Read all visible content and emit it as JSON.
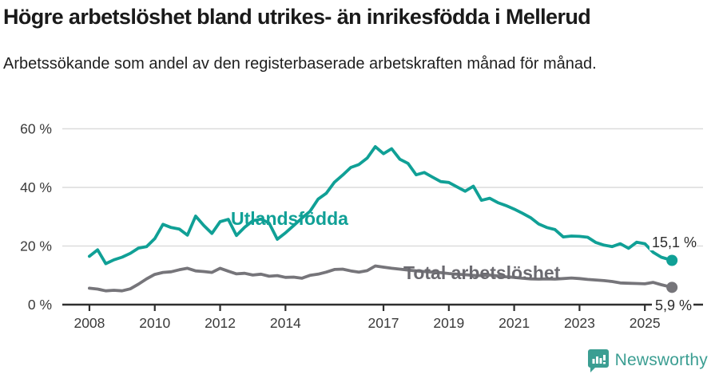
{
  "header": {
    "title": "Högre arbetslöshet bland utrikes- än inrikesfödda i Mellerud",
    "subtitle": "Arbetssökande som andel av den registerbaserade arbetskraften månad för månad."
  },
  "chart_data": {
    "type": "line",
    "title": "Högre arbetslöshet bland utrikes- än inrikesfödda i Mellerud",
    "subtitle": "Arbetssökande som andel av den registerbaserade arbetskraften månad för månad.",
    "xlabel": "",
    "ylabel": "",
    "x_unit": "decimal-year (monthly data 2008–2025)",
    "xlim": [
      2007.17,
      2026.78
    ],
    "ylim": [
      0,
      62
    ],
    "grid": "horizontal",
    "y_ticks": [
      0,
      20,
      40,
      60
    ],
    "y_tick_labels": [
      "0 %",
      "20 %",
      "40 %",
      "60 %"
    ],
    "x_ticks": [
      2008,
      2010,
      2012,
      2014,
      2017,
      2019,
      2021,
      2023,
      2025
    ],
    "x_tick_labels": [
      "2008",
      "2010",
      "2012",
      "2014",
      "2017",
      "2019",
      "2021",
      "2023",
      "2025"
    ],
    "legend_position": "inline-labels",
    "series": [
      {
        "name": "Utlandsfödda",
        "color": "#10a096",
        "label_color": "#10a096",
        "end_label": "15,1 %",
        "end_value": 15.1,
        "points": [
          [
            2008.0,
            16.5
          ],
          [
            2008.25,
            18.7
          ],
          [
            2008.5,
            14.0
          ],
          [
            2008.75,
            15.3
          ],
          [
            2009.0,
            16.2
          ],
          [
            2009.25,
            17.5
          ],
          [
            2009.5,
            19.3
          ],
          [
            2009.75,
            19.8
          ],
          [
            2010.0,
            22.5
          ],
          [
            2010.25,
            27.4
          ],
          [
            2010.5,
            26.3
          ],
          [
            2010.75,
            25.8
          ],
          [
            2011.0,
            23.7
          ],
          [
            2011.25,
            30.2
          ],
          [
            2011.5,
            27.0
          ],
          [
            2011.75,
            24.3
          ],
          [
            2012.0,
            28.3
          ],
          [
            2012.25,
            29.1
          ],
          [
            2012.5,
            23.6
          ],
          [
            2012.75,
            26.4
          ],
          [
            2013.0,
            28.6
          ],
          [
            2013.25,
            29.2
          ],
          [
            2013.5,
            27.8
          ],
          [
            2013.75,
            22.3
          ],
          [
            2014.0,
            24.5
          ],
          [
            2014.25,
            27.0
          ],
          [
            2014.5,
            29.5
          ],
          [
            2014.75,
            31.8
          ],
          [
            2015.0,
            36.0
          ],
          [
            2015.25,
            38.0
          ],
          [
            2015.5,
            41.8
          ],
          [
            2015.75,
            44.2
          ],
          [
            2016.0,
            46.8
          ],
          [
            2016.25,
            47.8
          ],
          [
            2016.5,
            50.0
          ],
          [
            2016.75,
            53.9
          ],
          [
            2017.0,
            51.5
          ],
          [
            2017.25,
            53.2
          ],
          [
            2017.5,
            49.6
          ],
          [
            2017.75,
            48.2
          ],
          [
            2018.0,
            44.3
          ],
          [
            2018.25,
            45.1
          ],
          [
            2018.5,
            43.5
          ],
          [
            2018.75,
            42.0
          ],
          [
            2019.0,
            41.7
          ],
          [
            2019.25,
            40.2
          ],
          [
            2019.5,
            38.7
          ],
          [
            2019.75,
            40.4
          ],
          [
            2020.0,
            35.6
          ],
          [
            2020.25,
            36.3
          ],
          [
            2020.5,
            34.8
          ],
          [
            2020.75,
            33.8
          ],
          [
            2021.0,
            32.6
          ],
          [
            2021.25,
            31.2
          ],
          [
            2021.5,
            29.7
          ],
          [
            2021.75,
            27.5
          ],
          [
            2022.0,
            26.3
          ],
          [
            2022.25,
            25.6
          ],
          [
            2022.5,
            23.1
          ],
          [
            2022.75,
            23.4
          ],
          [
            2023.0,
            23.3
          ],
          [
            2023.25,
            23.0
          ],
          [
            2023.5,
            21.2
          ],
          [
            2023.75,
            20.3
          ],
          [
            2024.0,
            19.8
          ],
          [
            2024.25,
            20.8
          ],
          [
            2024.5,
            19.2
          ],
          [
            2024.75,
            21.3
          ],
          [
            2025.0,
            20.8
          ],
          [
            2025.25,
            17.9
          ],
          [
            2025.5,
            16.2
          ],
          [
            2025.83,
            15.1
          ]
        ]
      },
      {
        "name": "Total arbetslöshet",
        "color": "#76757a",
        "label_color": "#6b6a70",
        "end_label": "5,9 %",
        "end_value": 5.9,
        "points": [
          [
            2008.0,
            5.6
          ],
          [
            2008.25,
            5.3
          ],
          [
            2008.5,
            4.7
          ],
          [
            2008.75,
            4.9
          ],
          [
            2009.0,
            4.7
          ],
          [
            2009.25,
            5.4
          ],
          [
            2009.5,
            7.0
          ],
          [
            2009.75,
            8.8
          ],
          [
            2010.0,
            10.3
          ],
          [
            2010.25,
            11.0
          ],
          [
            2010.5,
            11.2
          ],
          [
            2010.75,
            11.9
          ],
          [
            2011.0,
            12.4
          ],
          [
            2011.25,
            11.5
          ],
          [
            2011.5,
            11.3
          ],
          [
            2011.75,
            11.0
          ],
          [
            2012.0,
            12.4
          ],
          [
            2012.25,
            11.4
          ],
          [
            2012.5,
            10.5
          ],
          [
            2012.75,
            10.7
          ],
          [
            2013.0,
            10.1
          ],
          [
            2013.25,
            10.4
          ],
          [
            2013.5,
            9.7
          ],
          [
            2013.75,
            9.9
          ],
          [
            2014.0,
            9.3
          ],
          [
            2014.25,
            9.4
          ],
          [
            2014.5,
            9.0
          ],
          [
            2014.75,
            10.0
          ],
          [
            2015.0,
            10.4
          ],
          [
            2015.25,
            11.1
          ],
          [
            2015.5,
            12.0
          ],
          [
            2015.75,
            12.1
          ],
          [
            2016.0,
            11.5
          ],
          [
            2016.25,
            11.1
          ],
          [
            2016.5,
            11.6
          ],
          [
            2016.75,
            13.2
          ],
          [
            2017.0,
            12.8
          ],
          [
            2017.25,
            12.4
          ],
          [
            2017.5,
            12.1
          ],
          [
            2017.75,
            11.8
          ],
          [
            2018.0,
            11.5
          ],
          [
            2018.25,
            11.3
          ],
          [
            2018.5,
            11.1
          ],
          [
            2018.75,
            10.9
          ],
          [
            2019.0,
            10.6
          ],
          [
            2019.25,
            10.4
          ],
          [
            2019.5,
            10.2
          ],
          [
            2019.75,
            10.0
          ],
          [
            2020.0,
            9.9
          ],
          [
            2020.25,
            10.1
          ],
          [
            2020.5,
            9.8
          ],
          [
            2020.75,
            9.5
          ],
          [
            2021.0,
            9.3
          ],
          [
            2021.25,
            9.0
          ],
          [
            2021.5,
            8.8
          ],
          [
            2021.75,
            8.7
          ],
          [
            2022.0,
            8.8
          ],
          [
            2022.25,
            8.7
          ],
          [
            2022.5,
            8.9
          ],
          [
            2022.75,
            9.1
          ],
          [
            2023.0,
            8.9
          ],
          [
            2023.25,
            8.6
          ],
          [
            2023.5,
            8.4
          ],
          [
            2023.75,
            8.2
          ],
          [
            2024.0,
            7.9
          ],
          [
            2024.25,
            7.4
          ],
          [
            2024.5,
            7.3
          ],
          [
            2024.75,
            7.2
          ],
          [
            2025.0,
            7.1
          ],
          [
            2025.25,
            7.6
          ],
          [
            2025.5,
            6.8
          ],
          [
            2025.83,
            5.9
          ]
        ]
      }
    ]
  },
  "footer": {
    "brand": "Newsworthy",
    "brand_color": "#3b9e92"
  },
  "colors": {
    "accent_teal": "#10a096",
    "line_gray": "#76757a",
    "grid": "#dcdcdc",
    "axis": "#2f2f2f",
    "tick_text": "#3a3a3a",
    "title_text": "#1a1a1a"
  }
}
